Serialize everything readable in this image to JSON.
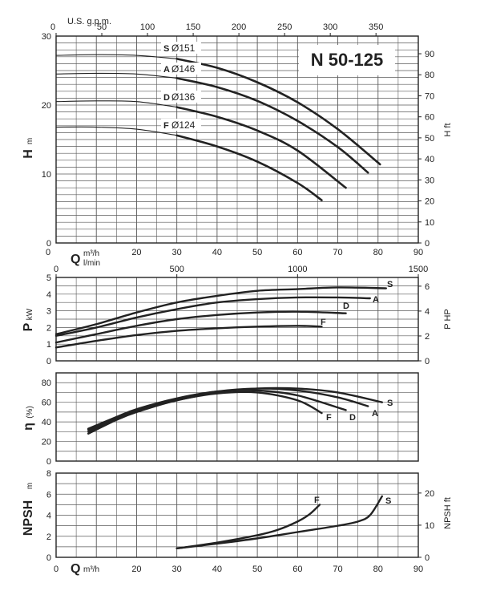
{
  "title": "N 50-125",
  "colors": {
    "grid": "#5a5a5a",
    "curve": "#222222",
    "thin": "#333333",
    "background": "#ffffff"
  },
  "axes": {
    "top_gpm": {
      "label": "U.S. g.p.m.",
      "ticks": [
        0,
        50,
        100,
        150,
        200,
        250,
        300,
        350
      ],
      "max": 396.3
    },
    "q_m3h": {
      "ticks": [
        0,
        10,
        20,
        30,
        40,
        50,
        60,
        70,
        80,
        90
      ]
    },
    "q_lmin": {
      "ticks": [
        0,
        500,
        1000,
        1500
      ],
      "max": 1500
    },
    "h_m": {
      "ticks": [
        0,
        10,
        20,
        30
      ],
      "max": 30
    },
    "h_ft": {
      "ticks": [
        0,
        10,
        20,
        30,
        40,
        50,
        60,
        70,
        80,
        90
      ],
      "max": 98.4
    },
    "p_kw": {
      "ticks": [
        0,
        1,
        2,
        3,
        4,
        5
      ],
      "max": 5
    },
    "p_hp": {
      "ticks": [
        0,
        2,
        4,
        6
      ],
      "max": 6.7
    },
    "eta": {
      "ticks": [
        0,
        20,
        40,
        60,
        80
      ],
      "max": 90
    },
    "npsh_m": {
      "ticks": [
        0,
        2,
        4,
        6,
        8
      ],
      "max": 8
    },
    "npsh_ft": {
      "ticks": [
        0,
        10,
        20
      ],
      "max": 26.2
    }
  },
  "labels": {
    "h_letter": "H",
    "h_unit": "m",
    "h_ft": "H ft",
    "q_letter": "Q",
    "q_unit_m3h": "m³/h",
    "q_unit_lmin": "l/min",
    "p_letter": "P",
    "p_unit": "kW",
    "p_hp": "P HP",
    "eta_letter": "η",
    "eta_unit": "(%)",
    "npsh_letter": "NPSH",
    "npsh_unit": "m",
    "npsh_ft": "NPSH ft",
    "q_bottom_letter": "Q",
    "q_bottom_unit": "m³/h"
  },
  "chart_data": [
    {
      "type": "line",
      "title": "N 50-125",
      "xlabel": "Q m³/h",
      "ylabel": "H m",
      "xlim": [
        0,
        90
      ],
      "ylim": [
        0,
        30
      ],
      "grid": true,
      "series": [
        {
          "name": "S",
          "impeller": "Ø151",
          "x": [
            0,
            10,
            20,
            30,
            40,
            50,
            60,
            70,
            80.5
          ],
          "y": [
            27.2,
            27.3,
            27.2,
            26.7,
            25.4,
            23.3,
            20.4,
            16.5,
            11.4
          ]
        },
        {
          "name": "A",
          "impeller": "Ø146",
          "x": [
            0,
            10,
            20,
            30,
            40,
            50,
            60,
            70,
            77.5
          ],
          "y": [
            24.5,
            24.6,
            24.5,
            23.9,
            22.6,
            20.6,
            17.7,
            13.9,
            10.2
          ]
        },
        {
          "name": "D",
          "impeller": "Ø136",
          "x": [
            0,
            10,
            20,
            30,
            40,
            50,
            60,
            72
          ],
          "y": [
            20.5,
            20.6,
            20.5,
            19.7,
            18.3,
            16.3,
            13.4,
            8.0
          ]
        },
        {
          "name": "F",
          "impeller": "Ø124",
          "x": [
            0,
            10,
            20,
            30,
            40,
            50,
            60,
            66
          ],
          "y": [
            16.8,
            16.8,
            16.5,
            15.6,
            14.0,
            11.8,
            8.7,
            6.2
          ]
        }
      ]
    },
    {
      "type": "line",
      "xlabel": "Q m³/h",
      "ylabel": "P kW",
      "xlim": [
        0,
        90
      ],
      "ylim": [
        0,
        5
      ],
      "grid": true,
      "series": [
        {
          "name": "S",
          "x": [
            0,
            10,
            20,
            30,
            40,
            50,
            60,
            70,
            82
          ],
          "y": [
            1.6,
            2.2,
            2.9,
            3.5,
            3.9,
            4.2,
            4.3,
            4.4,
            4.35
          ]
        },
        {
          "name": "A",
          "x": [
            0,
            10,
            20,
            30,
            40,
            50,
            60,
            70,
            78
          ],
          "y": [
            1.5,
            2.0,
            2.6,
            3.1,
            3.5,
            3.7,
            3.8,
            3.8,
            3.75
          ]
        },
        {
          "name": "D",
          "x": [
            0,
            10,
            20,
            30,
            40,
            50,
            60,
            72
          ],
          "y": [
            1.1,
            1.6,
            2.1,
            2.5,
            2.75,
            2.9,
            2.95,
            2.85
          ]
        },
        {
          "name": "F",
          "x": [
            0,
            10,
            20,
            30,
            40,
            50,
            60,
            66
          ],
          "y": [
            0.8,
            1.2,
            1.55,
            1.8,
            1.95,
            2.05,
            2.1,
            2.05
          ]
        }
      ]
    },
    {
      "type": "line",
      "xlabel": "Q m³/h",
      "ylabel": "η (%)",
      "xlim": [
        0,
        90
      ],
      "ylim": [
        0,
        90
      ],
      "grid": true,
      "series": [
        {
          "name": "S",
          "x": [
            8,
            15,
            20,
            30,
            40,
            50,
            60,
            70,
            81
          ],
          "y": [
            30,
            43,
            51,
            62,
            70,
            74,
            74,
            70,
            60
          ]
        },
        {
          "name": "A",
          "x": [
            8,
            15,
            20,
            30,
            40,
            50,
            60,
            70,
            77.5
          ],
          "y": [
            32,
            44,
            52,
            63,
            71,
            74,
            72,
            65,
            56
          ]
        },
        {
          "name": "D",
          "x": [
            8,
            15,
            20,
            30,
            40,
            50,
            60,
            72
          ],
          "y": [
            33,
            45,
            53,
            64,
            71,
            72,
            67,
            52
          ]
        },
        {
          "name": "F",
          "x": [
            8,
            15,
            20,
            30,
            40,
            50,
            60,
            66
          ],
          "y": [
            28,
            42,
            50,
            62,
            69,
            70,
            62,
            49
          ]
        }
      ]
    },
    {
      "type": "line",
      "xlabel": "Q m³/h",
      "ylabel": "NPSH m",
      "xlim": [
        0,
        90
      ],
      "ylim": [
        0,
        8
      ],
      "grid": true,
      "series": [
        {
          "name": "S",
          "x": [
            30,
            40,
            50,
            60,
            70,
            75,
            78,
            81
          ],
          "y": [
            0.85,
            1.3,
            1.8,
            2.4,
            3.0,
            3.4,
            4.0,
            5.8
          ]
        },
        {
          "name": "F",
          "x": [
            30,
            40,
            50,
            55,
            60,
            63,
            65.5
          ],
          "y": [
            0.85,
            1.4,
            2.1,
            2.6,
            3.4,
            4.1,
            5.0
          ]
        }
      ]
    }
  ]
}
